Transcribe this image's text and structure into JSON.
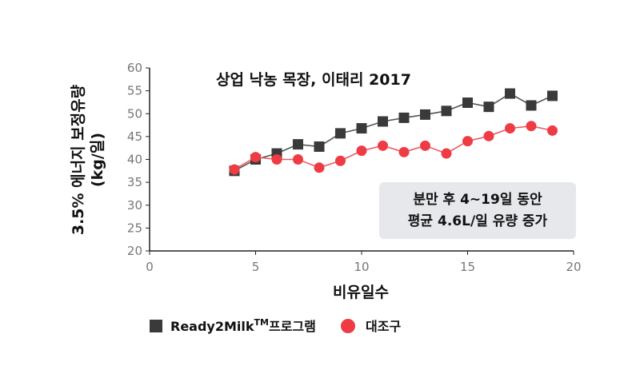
{
  "chart_data": {
    "type": "line",
    "title": "상업 낙농 목장, 이태리 2017",
    "xlabel": "비유일수",
    "ylabel_lines": [
      "3.5% 에너지 보정유량",
      "(kg/일)"
    ],
    "xlim": [
      0,
      20
    ],
    "ylim": [
      20,
      60
    ],
    "xticks": [
      0,
      5,
      10,
      15,
      20
    ],
    "yticks": [
      20,
      25,
      30,
      35,
      40,
      45,
      50,
      55,
      60
    ],
    "grid": false,
    "legend_position": "bottom",
    "annotation_lines": [
      "분만 후 4~19일 동안",
      "평균 4.6L/일 유량 증가"
    ],
    "series": [
      {
        "name": "Ready2Milk",
        "name_sup": "TM",
        "name_suffix": "프로그램",
        "marker": "square",
        "color": "#3a3a3a",
        "line_color": "#555555",
        "x": [
          4,
          5,
          6,
          7,
          8,
          9,
          10,
          11,
          12,
          13,
          14,
          15,
          16,
          17,
          18,
          19
        ],
        "values": [
          37.5,
          40.0,
          41.3,
          43.3,
          42.8,
          45.7,
          46.8,
          48.3,
          49.1,
          49.8,
          50.6,
          52.4,
          51.5,
          54.4,
          51.8,
          53.9
        ]
      },
      {
        "name": "대조구",
        "marker": "circle",
        "color": "#ee3b44",
        "line_color": "#ee5a60",
        "x": [
          4,
          5,
          6,
          7,
          8,
          9,
          10,
          11,
          12,
          13,
          14,
          15,
          16,
          17,
          18,
          19
        ],
        "values": [
          37.8,
          40.5,
          40.0,
          40.0,
          38.2,
          39.7,
          41.9,
          43.0,
          41.6,
          43.0,
          41.3,
          44.0,
          45.1,
          46.8,
          47.3,
          46.3
        ]
      }
    ]
  }
}
